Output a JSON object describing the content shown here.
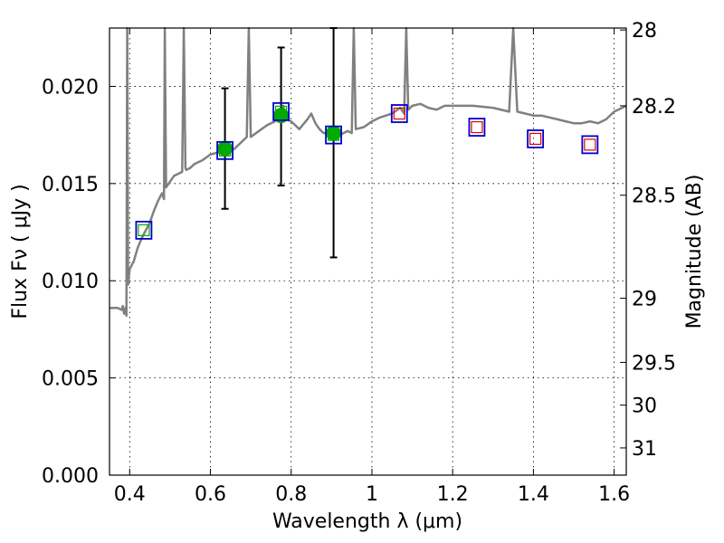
{
  "chart_data": {
    "type": "line",
    "xlabel": "Wavelength  λ (μm)",
    "ylabel": "Flux  Fν  ( μJy )",
    "y2label": "Magnitude (AB)",
    "xlim": [
      0.35,
      1.63
    ],
    "ylim": [
      0.0,
      0.023
    ],
    "grid": true,
    "x_ticks": [
      0.4,
      0.6,
      0.8,
      1.0,
      1.2,
      1.4,
      1.6
    ],
    "x_tick_labels": [
      "0.4",
      "0.6",
      "0.8",
      "1",
      "1.2",
      "1.4",
      "1.6"
    ],
    "y_ticks": [
      0.0,
      0.005,
      0.01,
      0.015,
      0.02
    ],
    "y_tick_labels": [
      "0.000",
      "0.005",
      "0.010",
      "0.015",
      "0.020"
    ],
    "y2_ticks": [
      {
        "label": "28",
        "flux": 0.0229
      },
      {
        "label": "28.2",
        "flux": 0.019
      },
      {
        "label": "28.5",
        "flux": 0.0144
      },
      {
        "label": "29",
        "flux": 0.0091
      },
      {
        "label": "29.5",
        "flux": 0.0058
      },
      {
        "label": "30",
        "flux": 0.0036
      },
      {
        "label": "31",
        "flux": 0.0014
      }
    ],
    "colors": {
      "sed": "#808080",
      "observed": "#00aa00",
      "model_box": "#0000cc",
      "model_inner": "#dd0000",
      "errorbar": "#000000"
    },
    "series": [
      {
        "kind": "sed_curve",
        "x": [
          0.35,
          0.37,
          0.38,
          0.383,
          0.386,
          0.39,
          0.392,
          0.394,
          0.396,
          0.4,
          0.41,
          0.42,
          0.43,
          0.44,
          0.45,
          0.46,
          0.47,
          0.48,
          0.485,
          0.487,
          0.49,
          0.5,
          0.51,
          0.52,
          0.53,
          0.534,
          0.538,
          0.54,
          0.55,
          0.56,
          0.57,
          0.58,
          0.6,
          0.62,
          0.63,
          0.635,
          0.64,
          0.66,
          0.68,
          0.69,
          0.695,
          0.7,
          0.72,
          0.74,
          0.76,
          0.77,
          0.78,
          0.79,
          0.8,
          0.81,
          0.82,
          0.84,
          0.85,
          0.86,
          0.87,
          0.88,
          0.9,
          0.905,
          0.91,
          0.92,
          0.93,
          0.94,
          0.95,
          0.955,
          0.96,
          0.98,
          1.0,
          1.02,
          1.05,
          1.07,
          1.08,
          1.085,
          1.09,
          1.1,
          1.12,
          1.14,
          1.16,
          1.18,
          1.2,
          1.25,
          1.3,
          1.34,
          1.35,
          1.36,
          1.38,
          1.4,
          1.42,
          1.44,
          1.46,
          1.48,
          1.5,
          1.52,
          1.54,
          1.56,
          1.58,
          1.6,
          1.62,
          1.63
        ],
        "y": [
          0.0086,
          0.0086,
          0.0085,
          0.0087,
          0.0083,
          0.0086,
          0.0082,
          0.03,
          0.0098,
          0.0106,
          0.011,
          0.0117,
          0.0122,
          0.0126,
          0.013,
          0.0136,
          0.0141,
          0.0145,
          0.0142,
          0.03,
          0.0148,
          0.0151,
          0.0154,
          0.0155,
          0.0156,
          0.03,
          0.0158,
          0.0157,
          0.0158,
          0.016,
          0.0161,
          0.0162,
          0.0165,
          0.0166,
          0.0167,
          0.0169,
          0.0166,
          0.0168,
          0.0172,
          0.0174,
          0.03,
          0.0174,
          0.0177,
          0.018,
          0.0182,
          0.0186,
          0.019,
          0.0183,
          0.0182,
          0.018,
          0.0178,
          0.0183,
          0.0186,
          0.0181,
          0.0178,
          0.0176,
          0.0176,
          0.0172,
          0.0174,
          0.0175,
          0.0176,
          0.0177,
          0.0176,
          0.03,
          0.0178,
          0.0179,
          0.0182,
          0.0184,
          0.0186,
          0.0189,
          0.0186,
          0.03,
          0.0188,
          0.019,
          0.0191,
          0.0189,
          0.0188,
          0.019,
          0.019,
          0.019,
          0.0189,
          0.0187,
          0.03,
          0.0187,
          0.0186,
          0.0185,
          0.0185,
          0.0184,
          0.0183,
          0.0182,
          0.0181,
          0.0181,
          0.0182,
          0.0181,
          0.0183,
          0.0187,
          0.0189,
          0.019
        ]
      },
      {
        "kind": "observed_points",
        "x": [
          0.636,
          0.775,
          0.905
        ],
        "y": [
          0.0168,
          0.0185,
          0.0176
        ],
        "yerr_low": [
          0.0137,
          0.0149,
          0.0112
        ],
        "yerr_high": [
          0.0199,
          0.022,
          0.023
        ]
      },
      {
        "kind": "model_boxes",
        "x": [
          0.435,
          0.636,
          0.775,
          0.905,
          1.068,
          1.26,
          1.405,
          1.54
        ],
        "y": [
          0.0126,
          0.0167,
          0.0187,
          0.0175,
          0.0186,
          0.0179,
          0.0173,
          0.017
        ],
        "inner_color": [
          "#00aa00",
          "#00aa00",
          "#00aa00",
          "#00aa00",
          "#dd0000",
          "#dd0000",
          "#dd0000",
          "#dd0000"
        ]
      }
    ]
  }
}
